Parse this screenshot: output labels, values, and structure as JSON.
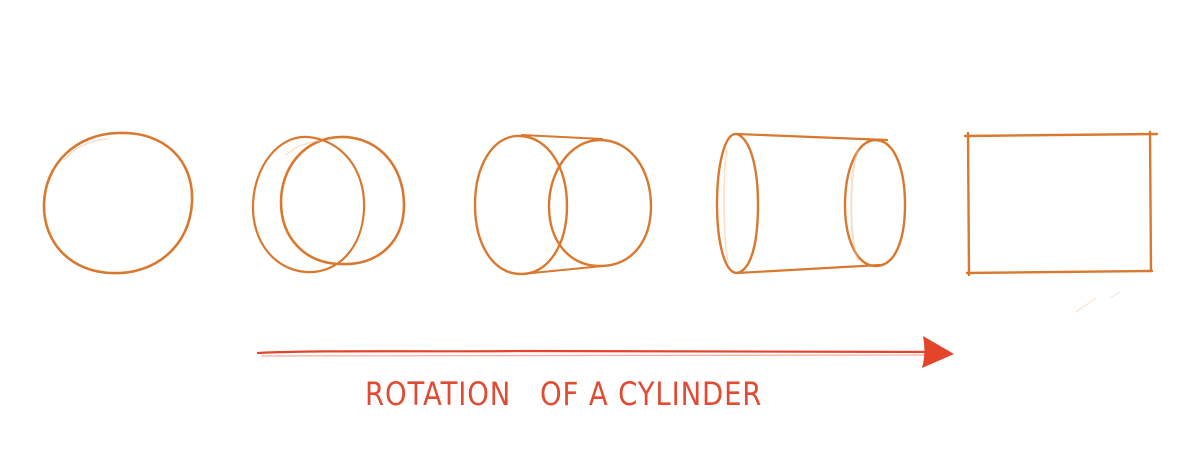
{
  "diagram": {
    "caption": "ROTATION   OF A CYLINDER",
    "stages": [
      {
        "name": "circle"
      },
      {
        "name": "slightly-turned-cylinder"
      },
      {
        "name": "half-turned-cylinder"
      },
      {
        "name": "mostly-turned-cylinder"
      },
      {
        "name": "side-rectangle"
      }
    ]
  },
  "colors": {
    "sketch": "#d9782f",
    "sketch_light": "#f0b98e",
    "arrow": "#e4432c",
    "caption": "#e14b33",
    "background": "#ffffff"
  }
}
